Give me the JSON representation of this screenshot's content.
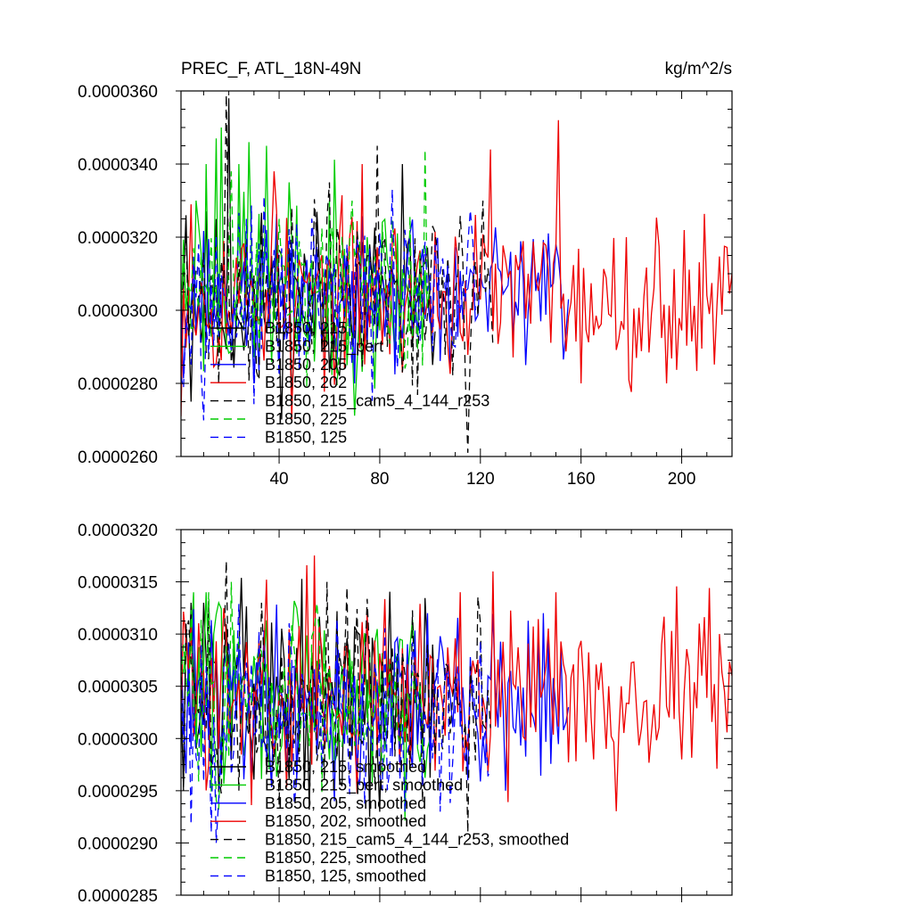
{
  "chart_data": [
    {
      "type": "line",
      "title_left": "PREC_F, ATL_18N-49N",
      "title_right": "kg/m^2/s",
      "xlim": [
        1,
        220
      ],
      "ylim": [
        2.6e-05,
        3.6e-05
      ],
      "x_tick_labels": [
        "40",
        "80",
        "120",
        "160",
        "200"
      ],
      "x_tick_values": [
        40,
        80,
        120,
        160,
        200
      ],
      "y_tick_labels": [
        "0.0000260",
        "0.0000280",
        "0.0000300",
        "0.0000320",
        "0.0000340",
        "0.0000360"
      ],
      "y_tick_values": [
        2.6e-05,
        2.8e-05,
        3e-05,
        3.2e-05,
        3.4e-05,
        3.6e-05
      ],
      "legend": [
        "B1850, 215",
        "B1850, 215_pert",
        "B1850, 205",
        "B1850, 202",
        "B1850, 215_cam5_4_144_r253",
        "B1850, 225",
        "B1850, 125"
      ],
      "series": [
        {
          "name": "B1850, 215",
          "color": "#000000",
          "dash": "solid",
          "length": 102,
          "seed": 11,
          "mean": 3.03e-05,
          "sigma": 1.2e-06,
          "extremes": [
            [
              3,
              3.26e-05
            ],
            [
              5,
              2.75e-05
            ],
            [
              20,
              3.58e-05
            ],
            [
              45,
              2.74e-05
            ],
            [
              60,
              2.83e-05
            ],
            [
              89,
              3.4e-05
            ],
            [
              93,
              2.9e-05
            ],
            [
              100,
              3e-05
            ]
          ]
        },
        {
          "name": "B1850, 215_pert",
          "color": "#00cc00",
          "dash": "solid",
          "length": 100,
          "seed": 23,
          "mean": 3.05e-05,
          "sigma": 1.3e-06,
          "extremes": [
            [
              3,
              3e-05
            ],
            [
              7,
              3.3e-05
            ],
            [
              11,
              3.4e-05
            ],
            [
              15,
              3.47e-05
            ],
            [
              17,
              3.5e-05
            ],
            [
              24,
              3.4e-05
            ],
            [
              28,
              3.46e-05
            ],
            [
              35,
              3.45e-05
            ],
            [
              44,
              3.35e-05
            ],
            [
              60,
              3.3e-05
            ],
            [
              75,
              3.2e-05
            ]
          ]
        },
        {
          "name": "B1850, 205",
          "color": "#0000ff",
          "dash": "solid",
          "length": 155,
          "seed": 37,
          "mean": 3.04e-05,
          "sigma": 1e-06,
          "extremes": [
            [
              1,
              3.02e-05
            ],
            [
              30,
              2.8e-05
            ],
            [
              70,
              2.8e-05
            ],
            [
              92,
              3.21e-05
            ],
            [
              108,
              2.84e-05
            ],
            [
              120,
              3.1e-05
            ],
            [
              132,
              3.16e-05
            ],
            [
              138,
              2.85e-05
            ],
            [
              150,
              3.18e-05
            ],
            [
              155,
              3.03e-05
            ]
          ]
        },
        {
          "name": "B1850, 202",
          "color": "#ee0000",
          "dash": "solid",
          "length": 220,
          "seed": 53,
          "mean": 3.04e-05,
          "sigma": 1.1e-06,
          "extremes": [
            [
              1,
              2.71e-05
            ],
            [
              5,
              3.29e-05
            ],
            [
              38,
              3.38e-05
            ],
            [
              45,
              2.7e-05
            ],
            [
              73,
              3.4e-05
            ],
            [
              124,
              3.44e-05
            ],
            [
              151,
              3.52e-05
            ],
            [
              160,
              2.8e-05
            ],
            [
              178,
              3.2e-05
            ],
            [
              194,
              2.8e-05
            ],
            [
              220,
              3.1e-05
            ]
          ]
        },
        {
          "name": "B1850, 215_cam5_4_144_r253",
          "color": "#000000",
          "dash": "9 6",
          "length": 125,
          "seed": 71,
          "mean": 3.04e-05,
          "sigma": 1.2e-06,
          "extremes": [
            [
              5,
              3e-05
            ],
            [
              19,
              3.59e-05
            ],
            [
              60,
              3.35e-05
            ],
            [
              79,
              3.45e-05
            ],
            [
              82,
              3.2e-05
            ],
            [
              115,
              2.61e-05
            ],
            [
              121,
              3.3e-05
            ],
            [
              125,
              2.9e-05
            ]
          ]
        },
        {
          "name": "B1850, 225",
          "color": "#00cc00",
          "dash": "9 6",
          "length": 99,
          "seed": 89,
          "mean": 3.05e-05,
          "sigma": 1.2e-06,
          "extremes": [
            [
              3,
              3e-05
            ],
            [
              9,
              3.15e-05
            ],
            [
              21,
              3.38e-05
            ],
            [
              40,
              3.25e-05
            ],
            [
              69,
              3.3e-05
            ],
            [
              98,
              3.44e-05
            ],
            [
              99,
              3e-05
            ]
          ]
        },
        {
          "name": "B1850, 125",
          "color": "#0000ff",
          "dash": "9 6",
          "length": 118,
          "seed": 97,
          "mean": 3.02e-05,
          "sigma": 1.1e-06,
          "extremes": [
            [
              3,
              2.97e-05
            ],
            [
              8,
              3.18e-05
            ],
            [
              14,
              2.9e-05
            ],
            [
              27,
              3.25e-05
            ],
            [
              40,
              2.82e-05
            ],
            [
              60,
              3.1e-05
            ],
            [
              90,
              3.22e-05
            ],
            [
              110,
              2.9e-05
            ],
            [
              118,
              3e-05
            ]
          ]
        }
      ]
    },
    {
      "type": "line",
      "xlim": [
        1,
        220
      ],
      "ylim": [
        2.85e-05,
        3.2e-05
      ],
      "x_tick_values": [
        40,
        80,
        120,
        160,
        200
      ],
      "y_tick_labels": [
        "0.0000285",
        "0.0000290",
        "0.0000295",
        "0.0000300",
        "0.0000305",
        "0.0000310",
        "0.0000315",
        "0.0000320"
      ],
      "y_tick_values": [
        2.85e-05,
        2.9e-05,
        2.95e-05,
        3e-05,
        3.05e-05,
        3.1e-05,
        3.15e-05,
        3.2e-05
      ],
      "legend": [
        "B1850, 215, smoothed",
        "B1850, 215_pert, smoothed",
        "B1850, 205, smoothed",
        "B1850, 202, smoothed",
        "B1850, 215_cam5_4_144_r253, smoothed",
        "B1850, 225, smoothed",
        "B1850, 125, smoothed"
      ],
      "series": [
        {
          "name": "B1850, 215, smoothed",
          "color": "#000000",
          "dash": "solid",
          "length": 102,
          "seed": 13,
          "mean": 3.04e-05,
          "sigma": 4.5e-07,
          "extremes": [
            [
              3,
              3.11e-05
            ],
            [
              5,
              3.13e-05
            ],
            [
              10,
              3.13e-05
            ],
            [
              18,
              3.07e-05
            ],
            [
              35,
              2.99e-05
            ],
            [
              60,
              3.03e-05
            ],
            [
              85,
              3.03e-05
            ],
            [
              101,
              3.09e-05
            ],
            [
              102,
              3.03e-05
            ]
          ]
        },
        {
          "name": "B1850, 215_pert, smoothed",
          "color": "#00cc00",
          "dash": "solid",
          "length": 100,
          "seed": 29,
          "mean": 3.04e-05,
          "sigma": 4.5e-07,
          "extremes": [
            [
              3,
              3.09e-05
            ],
            [
              6,
              3.14e-05
            ],
            [
              11,
              3.14e-05
            ],
            [
              16,
              3.13e-05
            ],
            [
              27,
              3.01e-05
            ],
            [
              45,
              3.09e-05
            ],
            [
              60,
              2.98e-05
            ],
            [
              80,
              3.04e-05
            ],
            [
              100,
              3e-05
            ]
          ]
        },
        {
          "name": "B1850, 205, smoothed",
          "color": "#0000ff",
          "dash": "solid",
          "length": 155,
          "seed": 41,
          "mean": 3.04e-05,
          "sigma": 4e-07,
          "extremes": [
            [
              5,
              2.99e-05
            ],
            [
              40,
              3e-05
            ],
            [
              62,
              2.94e-05
            ],
            [
              70,
              3.06e-05
            ],
            [
              99,
              3.12e-05
            ],
            [
              115,
              2.96e-05
            ],
            [
              130,
              2.95e-05
            ],
            [
              145,
              3.12e-05
            ],
            [
              150,
              3.03e-05
            ],
            [
              155,
              3.03e-05
            ]
          ]
        },
        {
          "name": "B1850, 202, smoothed",
          "color": "#ee0000",
          "dash": "solid",
          "length": 220,
          "seed": 59,
          "mean": 3.05e-05,
          "sigma": 4.5e-07,
          "extremes": [
            [
              5,
              3.11e-05
            ],
            [
              20,
              3e-05
            ],
            [
              55,
              3e-05
            ],
            [
              75,
              3.12e-05
            ],
            [
              125,
              3.16e-05
            ],
            [
              150,
              3.14e-05
            ],
            [
              165,
              2.98e-05
            ],
            [
              170,
              2.99e-05
            ],
            [
              200,
              2.98e-05
            ],
            [
              207,
              3.11e-05
            ],
            [
              215,
              3.1e-05
            ],
            [
              220,
              3.06e-05
            ]
          ]
        },
        {
          "name": "B1850, 215_cam5_4_144_r253, smoothed",
          "color": "#000000",
          "dash": "9 6",
          "length": 124,
          "seed": 73,
          "mean": 3.03e-05,
          "sigma": 4.5e-07,
          "extremes": [
            [
              3,
              3.1e-05
            ],
            [
              19,
              3.17e-05
            ],
            [
              33,
              3.13e-05
            ],
            [
              59,
              3.15e-05
            ],
            [
              100,
              3e-05
            ],
            [
              115,
              2.91e-05
            ],
            [
              122,
              3.01e-05
            ],
            [
              124,
              3.01e-05
            ]
          ]
        },
        {
          "name": "B1850, 225, smoothed",
          "color": "#00cc00",
          "dash": "9 6",
          "length": 97,
          "seed": 83,
          "mean": 3.04e-05,
          "sigma": 4e-07,
          "extremes": [
            [
              3,
              3.06e-05
            ],
            [
              12,
              3.14e-05
            ],
            [
              21,
              3.15e-05
            ],
            [
              55,
              3.13e-05
            ],
            [
              80,
              3.04e-05
            ],
            [
              97,
              3.01e-05
            ]
          ]
        },
        {
          "name": "B1850, 125, smoothed",
          "color": "#0000ff",
          "dash": "9 6",
          "length": 124,
          "seed": 101,
          "mean": 3.02e-05,
          "sigma": 4.5e-07,
          "extremes": [
            [
              3,
              3e-05
            ],
            [
              8,
              2.97e-05
            ],
            [
              13,
              2.91e-05
            ],
            [
              15,
              2.9e-05
            ],
            [
              25,
              3.02e-05
            ],
            [
              50,
              3.01e-05
            ],
            [
              66,
              3.07e-05
            ],
            [
              90,
              2.93e-05
            ],
            [
              110,
              3.03e-05
            ],
            [
              124,
              2.97e-05
            ]
          ]
        }
      ]
    }
  ]
}
